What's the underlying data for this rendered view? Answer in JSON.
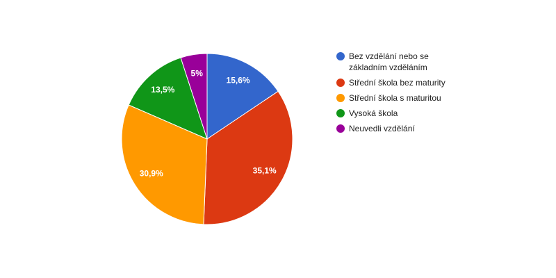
{
  "chart_data": {
    "type": "pie",
    "categories": [
      "Bez vzdělání nebo se základním vzděláním",
      "Střední škola bez maturity",
      "Střední škola s maturitou",
      "Vysoká škola",
      "Neuvedli vzdělání"
    ],
    "values": [
      15.6,
      35.1,
      30.9,
      13.5,
      5
    ],
    "value_labels": [
      "15,6%",
      "35,1%",
      "30,9%",
      "13,5%",
      "5%"
    ],
    "colors": [
      "#3366cc",
      "#dc3912",
      "#ff9900",
      "#109618",
      "#990099"
    ],
    "legend": "right"
  }
}
